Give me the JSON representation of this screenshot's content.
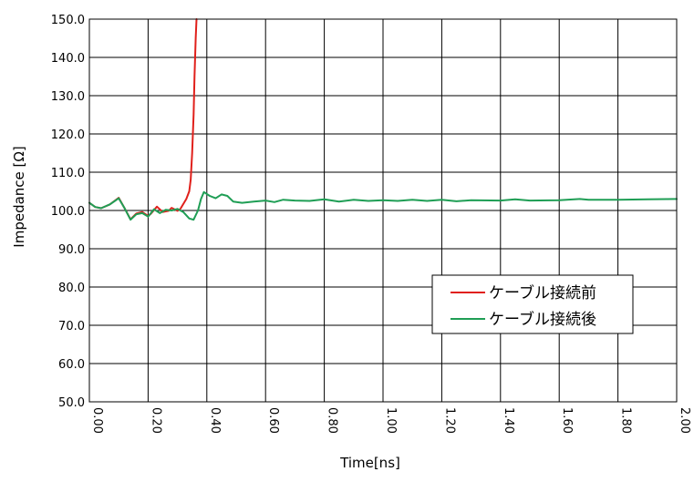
{
  "chart_data": {
    "type": "line",
    "xlabel": "Time[ns]",
    "ylabel": "Impedance [Ω]",
    "xlim": [
      0.0,
      2.0
    ],
    "ylim": [
      50.0,
      150.0
    ],
    "grid": true,
    "legend_position": "right",
    "x_ticks": [
      "0.00",
      "0.20",
      "0.40",
      "0.60",
      "0.80",
      "1.00",
      "1.20",
      "1.40",
      "1.60",
      "1.80",
      "2.00"
    ],
    "y_ticks": [
      "50.0",
      "60.0",
      "70.0",
      "80.0",
      "90.0",
      "100.0",
      "110.0",
      "120.0",
      "130.0",
      "140.0",
      "150.0"
    ],
    "series": [
      {
        "name": "ケーブル接続前",
        "color": "#e0201b",
        "points": [
          [
            0.0,
            102.0
          ],
          [
            0.02,
            100.9
          ],
          [
            0.04,
            100.6
          ],
          [
            0.07,
            101.6
          ],
          [
            0.1,
            103.3
          ],
          [
            0.12,
            100.6
          ],
          [
            0.14,
            97.7
          ],
          [
            0.16,
            99.2
          ],
          [
            0.18,
            99.6
          ],
          [
            0.2,
            98.6
          ],
          [
            0.21,
            99.2
          ],
          [
            0.23,
            101.0
          ],
          [
            0.25,
            99.6
          ],
          [
            0.27,
            99.9
          ],
          [
            0.28,
            100.7
          ],
          [
            0.3,
            99.9
          ],
          [
            0.31,
            100.4
          ],
          [
            0.33,
            103.0
          ],
          [
            0.34,
            105.0
          ],
          [
            0.345,
            108.0
          ],
          [
            0.35,
            115.0
          ],
          [
            0.355,
            125.0
          ],
          [
            0.358,
            135.0
          ],
          [
            0.362,
            145.0
          ],
          [
            0.365,
            150.0
          ]
        ]
      },
      {
        "name": "ケーブル接続後",
        "color": "#1f9e55",
        "points": [
          [
            0.0,
            102.0
          ],
          [
            0.02,
            100.9
          ],
          [
            0.04,
            100.6
          ],
          [
            0.07,
            101.6
          ],
          [
            0.1,
            103.2
          ],
          [
            0.12,
            100.6
          ],
          [
            0.14,
            97.6
          ],
          [
            0.16,
            99.0
          ],
          [
            0.18,
            99.3
          ],
          [
            0.2,
            98.4
          ],
          [
            0.22,
            100.3
          ],
          [
            0.24,
            99.3
          ],
          [
            0.26,
            100.2
          ],
          [
            0.28,
            100.0
          ],
          [
            0.3,
            100.4
          ],
          [
            0.32,
            99.6
          ],
          [
            0.34,
            97.9
          ],
          [
            0.355,
            97.6
          ],
          [
            0.37,
            100.0
          ],
          [
            0.38,
            103.0
          ],
          [
            0.39,
            104.8
          ],
          [
            0.41,
            103.8
          ],
          [
            0.43,
            103.2
          ],
          [
            0.45,
            104.2
          ],
          [
            0.47,
            103.8
          ],
          [
            0.49,
            102.3
          ],
          [
            0.52,
            102.0
          ],
          [
            0.56,
            102.3
          ],
          [
            0.6,
            102.6
          ],
          [
            0.63,
            102.2
          ],
          [
            0.66,
            102.8
          ],
          [
            0.7,
            102.6
          ],
          [
            0.75,
            102.5
          ],
          [
            0.8,
            102.9
          ],
          [
            0.85,
            102.3
          ],
          [
            0.9,
            102.8
          ],
          [
            0.95,
            102.5
          ],
          [
            1.0,
            102.7
          ],
          [
            1.05,
            102.5
          ],
          [
            1.1,
            102.8
          ],
          [
            1.15,
            102.5
          ],
          [
            1.2,
            102.8
          ],
          [
            1.25,
            102.4
          ],
          [
            1.3,
            102.7
          ],
          [
            1.4,
            102.6
          ],
          [
            1.45,
            102.9
          ],
          [
            1.5,
            102.6
          ],
          [
            1.6,
            102.7
          ],
          [
            1.67,
            103.0
          ],
          [
            1.7,
            102.8
          ],
          [
            1.8,
            102.8
          ],
          [
            1.9,
            102.9
          ],
          [
            2.0,
            103.0
          ]
        ]
      }
    ]
  }
}
